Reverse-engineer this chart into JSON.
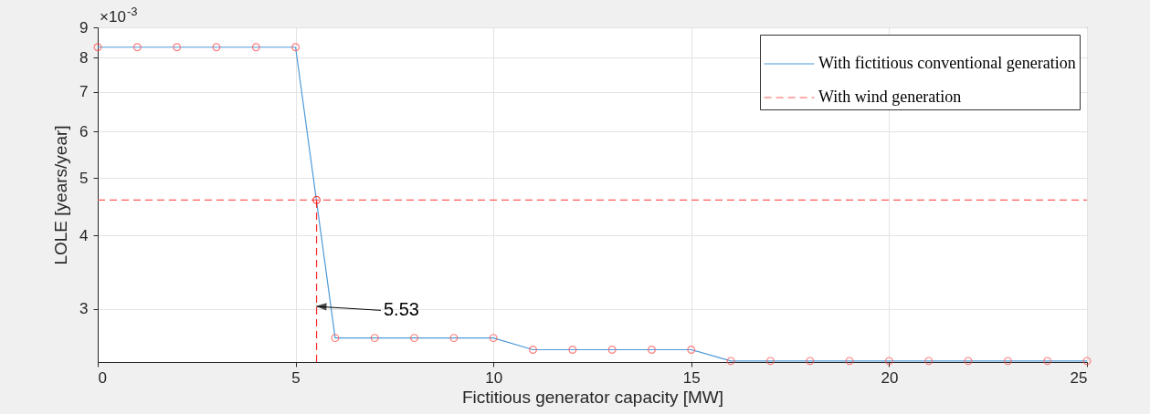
{
  "chart_data": {
    "type": "line",
    "xlabel": "Fictitious generator capacity [MW]",
    "ylabel": "LOLE [years/year]",
    "x": [
      0,
      1,
      2,
      3,
      4,
      5,
      6,
      7,
      8,
      9,
      10,
      11,
      12,
      13,
      14,
      15,
      16,
      17,
      18,
      19,
      20,
      21,
      22,
      23,
      24,
      25
    ],
    "series": [
      {
        "name": "With fictitious conventional generation",
        "color": "#4d9ad8",
        "line_style": "solid",
        "values": [
          8.33,
          8.33,
          8.33,
          8.33,
          8.33,
          8.33,
          2.68,
          2.68,
          2.68,
          2.68,
          2.68,
          2.56,
          2.56,
          2.56,
          2.56,
          2.56,
          2.45,
          2.45,
          2.45,
          2.45,
          2.45,
          2.45,
          2.45,
          2.45,
          2.45,
          2.45
        ]
      },
      {
        "type": "scatter",
        "color": "#ff4d4d",
        "marker": "circle",
        "values": [
          8.33,
          8.33,
          8.33,
          8.33,
          8.33,
          8.33,
          2.68,
          2.68,
          2.68,
          2.68,
          2.68,
          2.56,
          2.56,
          2.56,
          2.56,
          2.56,
          2.45,
          2.45,
          2.45,
          2.45,
          2.45,
          2.45,
          2.45,
          2.45,
          2.45,
          2.45
        ]
      },
      {
        "name": "With wind generation",
        "color": "#ff5a5a",
        "line_style": "dashed",
        "x": [
          0,
          25
        ],
        "values": [
          4.59,
          4.59
        ]
      },
      {
        "color": "#ff3030",
        "line_style": "dashed",
        "x": [
          5.53,
          5.53
        ],
        "values": [
          2.44,
          4.59
        ]
      },
      {
        "type": "scatter",
        "color": "#ff0000",
        "marker": "circle",
        "x": [
          5.53
        ],
        "values": [
          4.59
        ]
      }
    ],
    "xlim": [
      0,
      25
    ],
    "xticks": [
      0,
      5,
      10,
      15,
      20,
      25
    ],
    "ylim": [
      2.44,
      9
    ],
    "yticks": [
      3,
      4,
      5,
      6,
      7,
      8,
      9
    ],
    "log": "y",
    "grid": true,
    "legend": "top right",
    "annotations": [
      "×10$^{-3}$",
      {
        "text": "5.53",
        "x": 5.53,
        "y": 3.03
      }
    ]
  }
}
